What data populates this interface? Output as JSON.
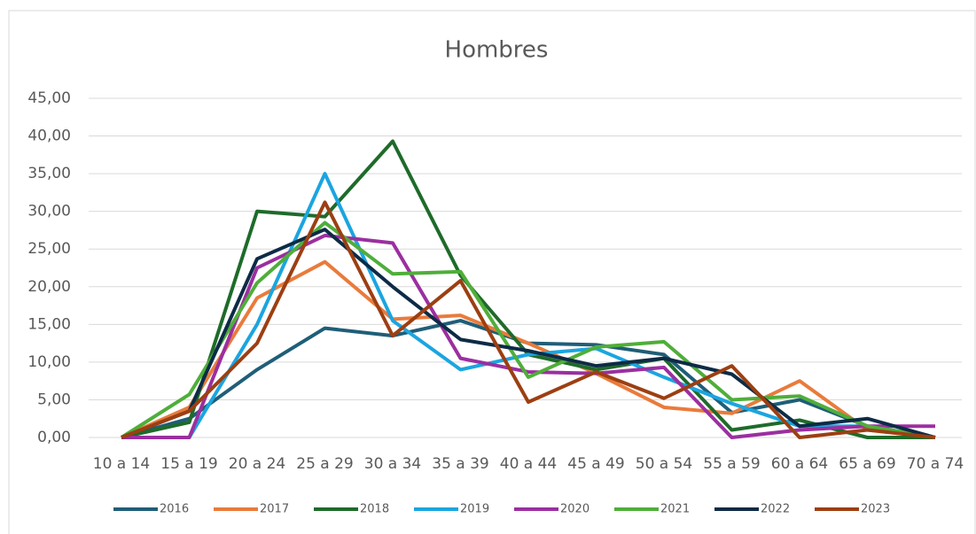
{
  "chart_data": {
    "type": "line",
    "title": "Hombres",
    "categories": [
      "10 a 14",
      "15 a 19",
      "20 a 24",
      "25 a 29",
      "30 a 34",
      "35 a 39",
      "40 a 44",
      "45 a 49",
      "50 a 54",
      "55 a 59",
      "60 a 64",
      "65 a 69",
      "70 a 74"
    ],
    "series": [
      {
        "name": "2016",
        "color": "#1f5e78",
        "values": [
          0,
          2.5,
          9,
          14.5,
          13.5,
          15.5,
          12.5,
          12.3,
          11,
          3.3,
          5,
          1.5,
          0
        ]
      },
      {
        "name": "2017",
        "color": "#e97b3c",
        "values": [
          0,
          4,
          18.5,
          23.3,
          15.7,
          16.2,
          12.5,
          8.5,
          4,
          3.2,
          7.5,
          1,
          0
        ]
      },
      {
        "name": "2018",
        "color": "#1e6b2a",
        "values": [
          0,
          2,
          30,
          29.3,
          39.3,
          21.5,
          11,
          9,
          10.5,
          1,
          2.3,
          0,
          0
        ]
      },
      {
        "name": "2019",
        "color": "#1ba5e0",
        "values": [
          0,
          0,
          15,
          35,
          15.5,
          9,
          11,
          11.8,
          8,
          4.5,
          1.5,
          1.5,
          0
        ]
      },
      {
        "name": "2020",
        "color": "#9b2fa0",
        "values": [
          0,
          0,
          22.5,
          26.8,
          25.8,
          10.5,
          8.7,
          8.5,
          9.3,
          0,
          1,
          1.5,
          1.5
        ]
      },
      {
        "name": "2021",
        "color": "#4fae3a",
        "values": [
          0,
          5.7,
          20.5,
          28.5,
          21.7,
          22,
          8,
          12,
          12.7,
          5,
          5.5,
          1.5,
          0
        ]
      },
      {
        "name": "2022",
        "color": "#0d2b46",
        "values": [
          0,
          3.5,
          23.7,
          27.6,
          20,
          13,
          11.5,
          9.5,
          10.5,
          8.4,
          1.5,
          2.5,
          0
        ]
      },
      {
        "name": "2023",
        "color": "#9c3f12",
        "values": [
          0,
          3.5,
          12.5,
          31.2,
          13.5,
          20.8,
          4.7,
          8.7,
          5.2,
          9.5,
          0,
          1,
          0
        ]
      }
    ],
    "ylim": [
      0,
      45
    ],
    "yticks": [
      {
        "value": 0,
        "label": "0,00"
      },
      {
        "value": 5,
        "label": "5,00"
      },
      {
        "value": 10,
        "label": "10,00"
      },
      {
        "value": 15,
        "label": "15,00"
      },
      {
        "value": 20,
        "label": "20,00"
      },
      {
        "value": 25,
        "label": "25,00"
      },
      {
        "value": 30,
        "label": "30,00"
      },
      {
        "value": 35,
        "label": "35,00"
      },
      {
        "value": 40,
        "label": "40,00"
      },
      {
        "value": 45,
        "label": "45,00"
      }
    ],
    "grid": true,
    "legend": "bottom"
  }
}
